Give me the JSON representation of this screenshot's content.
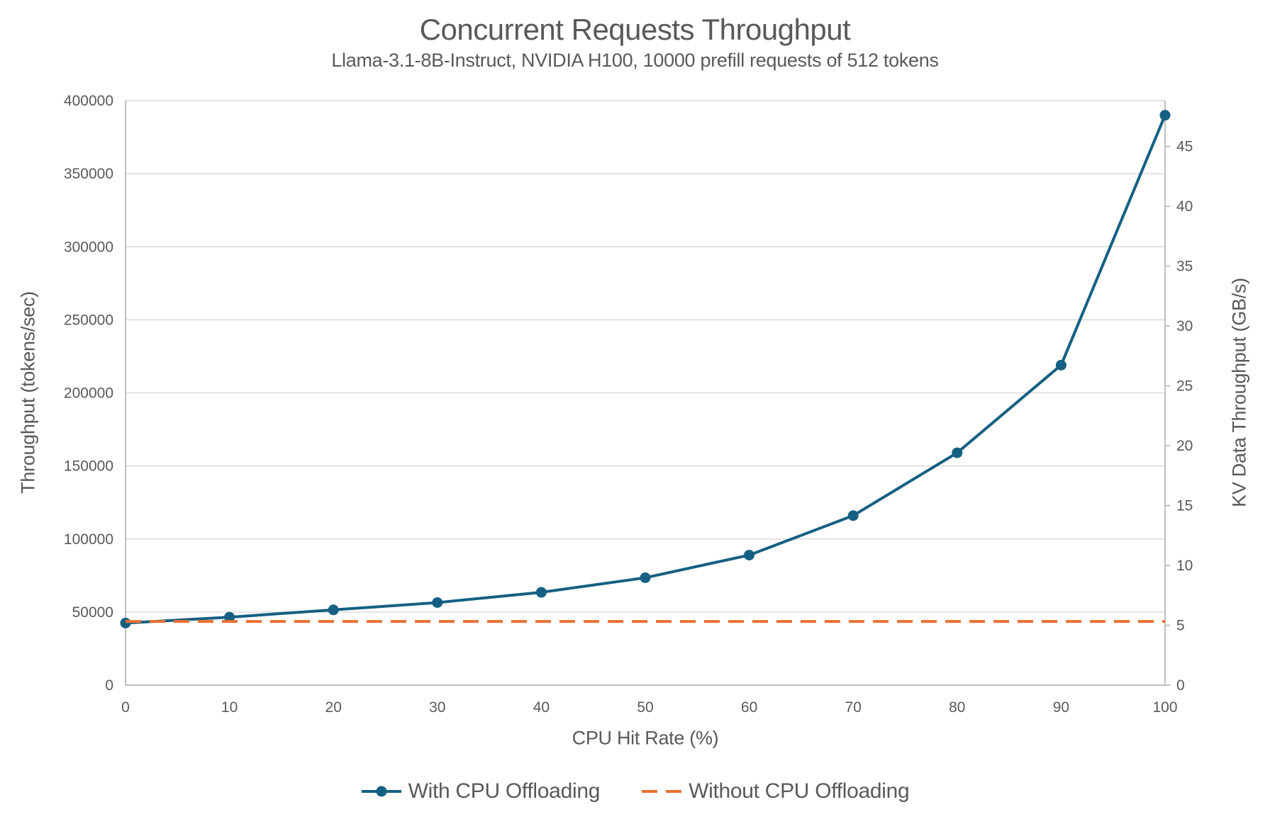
{
  "chart_data": {
    "type": "line",
    "title": "Concurrent Requests Throughput",
    "subtitle": "Llama-3.1-8B-Instruct, NVIDIA H100, 10000 prefill requests of 512 tokens",
    "xlabel": "CPU Hit Rate (%)",
    "ylabel": "Throughput (tokens/sec)",
    "y2label": "KV Data Throughput (GB/s)",
    "x": [
      0,
      10,
      20,
      30,
      40,
      50,
      60,
      70,
      80,
      90,
      100
    ],
    "series": [
      {
        "name": "With CPU Offloading",
        "axis": "left",
        "color": "#156082",
        "line": "solid",
        "markers": true,
        "values": [
          42500,
          46500,
          51500,
          56500,
          63500,
          73500,
          89000,
          116000,
          159000,
          219000,
          390000
        ]
      },
      {
        "name": "Without CPU Offloading",
        "axis": "left",
        "color": "#E97132",
        "line": "dashed",
        "markers": false,
        "values": [
          43600,
          43600,
          43600,
          43600,
          43600,
          43600,
          43600,
          43600,
          43600,
          43600,
          43600
        ]
      }
    ],
    "xlim": [
      0,
      100
    ],
    "ylim": [
      0,
      400000
    ],
    "y2lim": [
      0,
      48.83
    ],
    "xticks": [
      0,
      10,
      20,
      30,
      40,
      50,
      60,
      70,
      80,
      90,
      100
    ],
    "yticks": [
      0,
      50000,
      100000,
      150000,
      200000,
      250000,
      300000,
      350000,
      400000
    ],
    "y2ticks": [
      0,
      5,
      10,
      15,
      20,
      25,
      30,
      35,
      40,
      45
    ],
    "grid": "horizontal",
    "legend_position": "bottom",
    "colors": {
      "grid": "#D9D9D9",
      "axis": "#BFBFBF",
      "text": "#595959"
    }
  }
}
